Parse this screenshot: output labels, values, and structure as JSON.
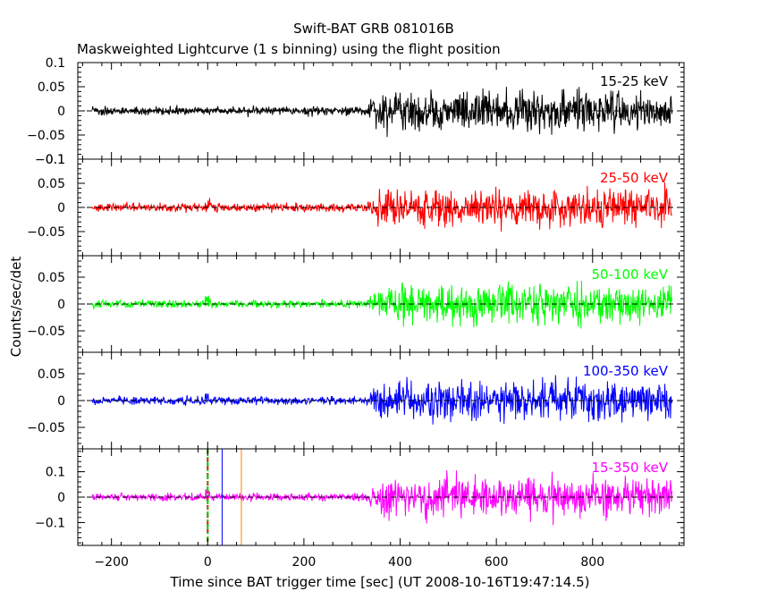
{
  "chart_data": {
    "type": "line",
    "title": "Swift-BAT GRB 081016B",
    "subtitle": "Maskweighted Lightcurve (1 s binning) using the flight position",
    "xlabel": "Time since BAT trigger time [sec] (UT 2008-10-16T19:47:14.5)",
    "ylabel": "Counts/sec/det",
    "xlim": [
      -270,
      990
    ],
    "x_ticks": [
      -200,
      0,
      200,
      400,
      600,
      800
    ],
    "x_tick_labels": [
      "−200",
      "0",
      "200",
      "400",
      "600",
      "800"
    ],
    "data_x_range": [
      -240,
      965
    ],
    "burst_onset_x": 350,
    "panels": [
      {
        "name": "15-25 keV",
        "color": "#000000",
        "ylim": [
          -0.1,
          0.1
        ],
        "y_ticks": [
          -0.1,
          -0.05,
          0,
          0.05,
          0.1
        ],
        "y_tick_labels": [
          "−0.1",
          "−0.05",
          "0",
          "0.05",
          "0.1"
        ],
        "noise_before": 0.006,
        "noise_after": 0.028,
        "spike_max": 0.1
      },
      {
        "name": "25-50 keV",
        "color": "#ff0000",
        "ylim": [
          -0.1,
          0.1
        ],
        "y_ticks": [
          -0.05,
          0,
          0.05,
          0.1
        ],
        "y_tick_labels": [
          "−0.05",
          "0",
          "0.05",
          "0.1"
        ],
        "noise_before": 0.006,
        "noise_after": 0.027,
        "spike_max": 0.09
      },
      {
        "name": "50-100 keV",
        "color": "#00ff00",
        "ylim": [
          -0.09,
          0.09
        ],
        "y_ticks": [
          -0.05,
          0,
          0.05
        ],
        "y_tick_labels": [
          "−0.05",
          "0",
          "0.05"
        ],
        "noise_before": 0.005,
        "noise_after": 0.025,
        "spike_max": 0.09
      },
      {
        "name": "100-350 keV",
        "color": "#0000ff",
        "ylim": [
          -0.09,
          0.09
        ],
        "y_ticks": [
          -0.05,
          0,
          0.05
        ],
        "y_tick_labels": [
          "−0.05",
          "0",
          "0.05"
        ],
        "noise_before": 0.005,
        "noise_after": 0.024,
        "spike_max": 0.08
      },
      {
        "name": "15-350 keV",
        "color": "#ff00ff",
        "ylim": [
          -0.19,
          0.19
        ],
        "y_ticks": [
          -0.1,
          0,
          0.1
        ],
        "y_tick_labels": [
          "−0.1",
          "0",
          "0.1"
        ],
        "noise_before": 0.01,
        "noise_after": 0.055,
        "spike_max": 0.18
      }
    ],
    "markers": [
      {
        "x": 0,
        "color": "#ff0000",
        "style": "dashed"
      },
      {
        "x": 0,
        "color": "#00cc00",
        "style": "dashdot"
      },
      {
        "x": 30,
        "color": "#0000ff",
        "style": "solid"
      },
      {
        "x": 70,
        "color": "#ff8000",
        "style": "solid"
      }
    ],
    "zero_line": "dashed",
    "grid": false,
    "legend": "panel labels at top-right"
  }
}
